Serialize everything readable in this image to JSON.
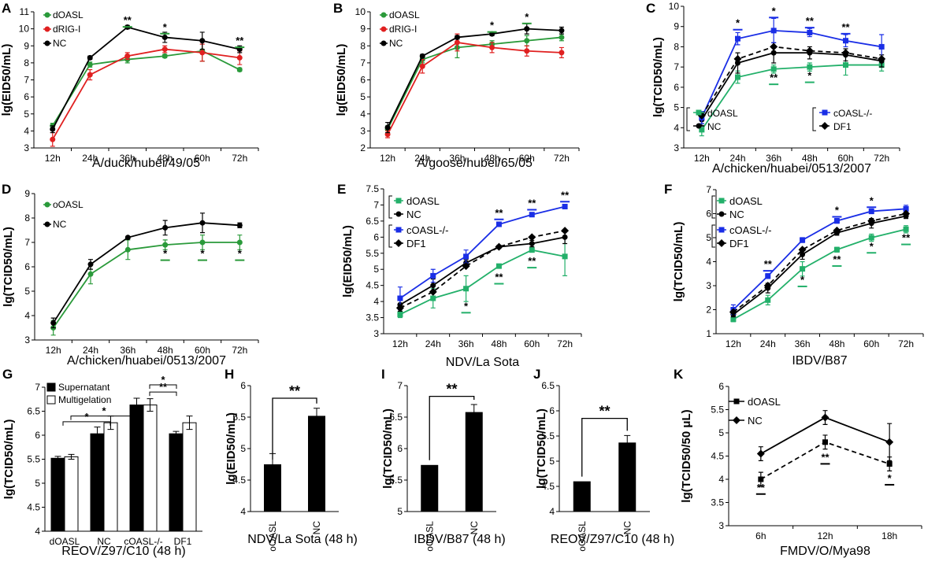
{
  "colors": {
    "green": "#2a9a3a",
    "red": "#e02020",
    "black": "#000000",
    "blue": "#1a2ee6",
    "teal": "#23b06a"
  },
  "chart_data": [
    {
      "id": "A",
      "type": "line",
      "label": "A",
      "xlabel": "A/duck/hubei/49/05",
      "ylabel": "lg(EID50/mL)",
      "ylim": [
        3,
        11
      ],
      "yticks": [
        "3",
        "4",
        "5",
        "6",
        "7",
        "8",
        "9",
        "10",
        "11"
      ],
      "categories": [
        "12h",
        "24h",
        "36h",
        "48h",
        "60h",
        "72h"
      ],
      "series": [
        {
          "name": "dOASL",
          "color": "green",
          "dash": false,
          "values": [
            4.3,
            7.9,
            8.2,
            8.4,
            8.7,
            7.6
          ],
          "errors": [
            0.15,
            0.15,
            0.2,
            0.1,
            0.6,
            0.1
          ]
        },
        {
          "name": "dRIG-I",
          "color": "red",
          "dash": false,
          "values": [
            3.5,
            7.3,
            8.4,
            8.8,
            8.6,
            8.3
          ],
          "errors": [
            0.4,
            0.3,
            0.2,
            0.2,
            0.5,
            0.4
          ]
        },
        {
          "name": "NC",
          "color": "black",
          "dash": false,
          "values": [
            4.1,
            8.3,
            10.1,
            9.5,
            9.3,
            8.8
          ],
          "errors": [
            0.2,
            0.1,
            0.1,
            0.3,
            0.5,
            0.2
          ]
        }
      ],
      "annotations": [
        {
          "x": 2,
          "y": 10.3,
          "text": "**",
          "color": "green"
        },
        {
          "x": 3,
          "y": 9.9,
          "text": "*",
          "color": "green"
        },
        {
          "x": 5,
          "y": 9.1,
          "text": "**",
          "color": "green"
        }
      ]
    },
    {
      "id": "B",
      "type": "line",
      "label": "B",
      "xlabel": "A/goose/hubei/65/05",
      "ylabel": "lg(EID50/mL)",
      "ylim": [
        2,
        10
      ],
      "yticks": [
        "2",
        "3",
        "4",
        "5",
        "6",
        "7",
        "8",
        "9",
        "10"
      ],
      "categories": [
        "12h",
        "24h",
        "36h",
        "48h",
        "60h",
        "72h"
      ],
      "series": [
        {
          "name": "dOASL",
          "color": "green",
          "dash": false,
          "values": [
            3.1,
            7.2,
            7.9,
            8.1,
            8.3,
            8.5
          ],
          "errors": [
            0.2,
            0.2,
            0.6,
            0.2,
            0.3,
            0.2
          ]
        },
        {
          "name": "dRIG-I",
          "color": "red",
          "dash": false,
          "values": [
            2.8,
            6.8,
            8.2,
            7.9,
            7.7,
            7.6
          ],
          "errors": [
            0.2,
            0.4,
            0.5,
            0.3,
            0.3,
            0.3
          ]
        },
        {
          "name": "NC",
          "color": "black",
          "dash": false,
          "values": [
            3.2,
            7.4,
            8.5,
            8.7,
            9.0,
            8.9
          ],
          "errors": [
            0.3,
            0.1,
            0.1,
            0.1,
            0.3,
            0.2
          ]
        }
      ],
      "annotations": [
        {
          "x": 3,
          "y": 9.0,
          "text": "*",
          "color": "green"
        },
        {
          "x": 4,
          "y": 9.5,
          "text": "*",
          "color": "green"
        }
      ]
    },
    {
      "id": "C",
      "type": "line",
      "label": "C",
      "xlabel": "A/chicken/huabei/0513/2007",
      "ylabel": "lg(TCID50/mL)",
      "ylim": [
        3,
        10
      ],
      "yticks": [
        "3",
        "4",
        "5",
        "6",
        "7",
        "8",
        "9",
        "10"
      ],
      "categories": [
        "12h",
        "24h",
        "36h",
        "48h",
        "60h",
        "72h"
      ],
      "series": [
        {
          "name": "dOASL",
          "color": "teal",
          "dash": false,
          "values": [
            3.9,
            6.5,
            6.9,
            7.0,
            7.1,
            7.1
          ],
          "errors": [
            0.3,
            0.3,
            0.2,
            0.2,
            0.5,
            0.3
          ]
        },
        {
          "name": "NC",
          "color": "black",
          "dash": false,
          "values": [
            4.4,
            7.2,
            7.7,
            7.7,
            7.6,
            7.3
          ],
          "errors": [
            0.3,
            0.5,
            0.5,
            0.3,
            0.3,
            0.3
          ]
        },
        {
          "name": "cOASL-/-",
          "color": "blue",
          "dash": false,
          "values": [
            4.5,
            8.4,
            8.8,
            8.7,
            8.3,
            8.0
          ],
          "errors": [
            0.3,
            0.3,
            0.6,
            0.2,
            0.3,
            0.6
          ]
        },
        {
          "name": "DF1",
          "color": "black",
          "dash": true,
          "values": [
            4.6,
            7.4,
            8.0,
            7.8,
            7.7,
            7.4
          ],
          "errors": [
            0,
            0,
            0,
            0,
            0,
            0
          ]
        }
      ],
      "annotations": [
        {
          "x": 1,
          "y": 9.0,
          "text": "*",
          "color": "blue"
        },
        {
          "x": 2,
          "y": 9.6,
          "text": "*",
          "color": "blue"
        },
        {
          "x": 3,
          "y": 9.1,
          "text": "**",
          "color": "blue"
        },
        {
          "x": 4,
          "y": 8.8,
          "text": "**",
          "color": "blue"
        },
        {
          "x": 2,
          "y": 6.3,
          "text": "**",
          "color": "teal"
        },
        {
          "x": 3,
          "y": 6.4,
          "text": "*",
          "color": "teal"
        }
      ]
    },
    {
      "id": "D",
      "type": "line",
      "label": "D",
      "xlabel": "A/chicken/huabei/0513/2007",
      "ylabel": "lg(TCID50/mL)",
      "ylim": [
        3,
        9
      ],
      "yticks": [
        "3",
        "4",
        "5",
        "6",
        "7",
        "8",
        "9"
      ],
      "categories": [
        "12h",
        "24h",
        "36h",
        "48h",
        "60h",
        "72h"
      ],
      "series": [
        {
          "name": "oOASL",
          "color": "green",
          "dash": false,
          "values": [
            3.5,
            5.7,
            6.7,
            6.9,
            7.0,
            7.0
          ],
          "errors": [
            0.3,
            0.4,
            0.4,
            0.2,
            0.3,
            0.3
          ]
        },
        {
          "name": "NC",
          "color": "black",
          "dash": false,
          "values": [
            3.7,
            6.1,
            7.2,
            7.6,
            7.8,
            7.7
          ],
          "errors": [
            0.2,
            0.2,
            0.05,
            0.3,
            0.4,
            0.1
          ]
        }
      ],
      "annotations": [
        {
          "x": 3,
          "y": 6.4,
          "text": "*",
          "color": "green"
        },
        {
          "x": 4,
          "y": 6.4,
          "text": "*",
          "color": "green"
        },
        {
          "x": 5,
          "y": 6.4,
          "text": "*",
          "color": "green"
        }
      ]
    },
    {
      "id": "E",
      "type": "line",
      "label": "E",
      "xlabel": "NDV/La Sota",
      "ylabel": "lg(EID50/mL)",
      "ylim": [
        3,
        7.5
      ],
      "yticks": [
        "3",
        "3.5",
        "4",
        "4.5",
        "5",
        "5.5",
        "6",
        "6.5",
        "7",
        "7.5"
      ],
      "categories": [
        "12h",
        "24h",
        "36h",
        "48h",
        "60h",
        "72h"
      ],
      "series": [
        {
          "name": "dOASL",
          "color": "teal",
          "dash": false,
          "values": [
            3.6,
            4.1,
            4.4,
            5.1,
            5.6,
            5.4
          ],
          "errors": [
            0.1,
            0.3,
            0.4,
            0.05,
            0.05,
            0.6
          ]
        },
        {
          "name": "NC",
          "color": "black",
          "dash": false,
          "values": [
            3.9,
            4.5,
            5.2,
            5.7,
            5.8,
            6.0
          ],
          "errors": [
            0.2,
            0.2,
            0.1,
            0.05,
            0.1,
            0.2
          ]
        },
        {
          "name": "cOASL-/-",
          "color": "blue",
          "dash": false,
          "values": [
            4.1,
            4.8,
            5.4,
            6.4,
            6.7,
            6.95
          ],
          "errors": [
            0.35,
            0.2,
            0.2,
            0.05,
            0.05,
            0.05
          ]
        },
        {
          "name": "DF1",
          "color": "black",
          "dash": true,
          "values": [
            3.8,
            4.3,
            5.1,
            5.7,
            6.0,
            6.2
          ],
          "errors": [
            0,
            0,
            0,
            0,
            0,
            0
          ]
        }
      ],
      "annotations": [
        {
          "x": 3,
          "y": 6.65,
          "text": "**",
          "color": "blue"
        },
        {
          "x": 4,
          "y": 6.95,
          "text": "**",
          "color": "blue"
        },
        {
          "x": 5,
          "y": 7.2,
          "text": "**",
          "color": "blue"
        },
        {
          "x": 2,
          "y": 3.75,
          "text": "*",
          "color": "teal"
        },
        {
          "x": 3,
          "y": 4.65,
          "text": "**",
          "color": "teal"
        },
        {
          "x": 4,
          "y": 5.15,
          "text": "**",
          "color": "teal"
        }
      ]
    },
    {
      "id": "F",
      "type": "line",
      "label": "F",
      "xlabel": "IBDV/B87",
      "ylabel": "lg(TCID50/mL)",
      "ylim": [
        1,
        7
      ],
      "yticks": [
        "1",
        "2",
        "3",
        "4",
        "5",
        "6",
        "7"
      ],
      "categories": [
        "12h",
        "24h",
        "36h",
        "48h",
        "60h",
        "72h"
      ],
      "series": [
        {
          "name": "dOASL",
          "color": "teal",
          "dash": false,
          "values": [
            1.6,
            2.4,
            3.7,
            4.5,
            5.0,
            5.35
          ],
          "errors": [
            0.1,
            0.2,
            0.3,
            0.1,
            0.15,
            0.15
          ]
        },
        {
          "name": "NC",
          "color": "black",
          "dash": false,
          "values": [
            1.8,
            2.9,
            4.3,
            5.2,
            5.6,
            5.9
          ],
          "errors": [
            0.1,
            0.2,
            0.2,
            0.1,
            0.2,
            0.1
          ]
        },
        {
          "name": "cOASL-/-",
          "color": "blue",
          "dash": false,
          "values": [
            2.0,
            3.4,
            4.9,
            5.7,
            6.1,
            6.2
          ],
          "errors": [
            0.2,
            0.1,
            0.1,
            0.1,
            0.1,
            0.15
          ]
        },
        {
          "name": "DF1",
          "color": "black",
          "dash": true,
          "values": [
            1.9,
            3.0,
            4.5,
            5.3,
            5.7,
            6.0
          ],
          "errors": [
            0,
            0,
            0,
            0,
            0,
            0
          ]
        }
      ],
      "annotations": [
        {
          "x": 1,
          "y": 3.75,
          "text": "**",
          "color": "blue"
        },
        {
          "x": 3,
          "y": 6.0,
          "text": "*",
          "color": "blue"
        },
        {
          "x": 4,
          "y": 6.4,
          "text": "*",
          "color": "blue"
        },
        {
          "x": 2,
          "y": 3.1,
          "text": "*",
          "color": "teal"
        },
        {
          "x": 3,
          "y": 3.95,
          "text": "**",
          "color": "teal"
        },
        {
          "x": 4,
          "y": 4.5,
          "text": "*",
          "color": "teal"
        },
        {
          "x": 5,
          "y": 4.85,
          "text": "**",
          "color": "teal"
        }
      ]
    },
    {
      "id": "G",
      "type": "bar",
      "label": "G",
      "xlabel": "REOV/Z97/C10 (48 h)",
      "ylabel": "lg(TCID50/mL)",
      "ylim": [
        4,
        7
      ],
      "yticks": [
        "4",
        "4.5",
        "5",
        "5.5",
        "6",
        "6.5",
        "7"
      ],
      "categories": [
        "dOASL",
        "NC",
        "cOASL-/-",
        "DF1"
      ],
      "series": [
        {
          "name": "Supernatant",
          "fill": "#000000",
          "values": [
            5.52,
            6.03,
            6.63,
            6.03
          ],
          "errors": [
            0.04,
            0.14,
            0.14,
            0.05
          ]
        },
        {
          "name": "Multigelation",
          "fill": "#ffffff",
          "values": [
            5.55,
            6.26,
            6.63,
            6.26
          ],
          "errors": [
            0.05,
            0.14,
            0.13,
            0.14
          ]
        }
      ],
      "brackets": [
        {
          "from": 0,
          "to": 1,
          "y": 6.28,
          "text": "*"
        },
        {
          "from": 0,
          "to": 2,
          "y": 6.4,
          "text": "*"
        },
        {
          "from": 2,
          "to": 3,
          "y": 6.9,
          "text": "**"
        },
        {
          "from": 2,
          "to": 3,
          "y": 7.05,
          "text": "*"
        }
      ]
    },
    {
      "id": "H",
      "type": "bar",
      "label": "H",
      "xlabel": "NDV/La Sota (48 h)",
      "ylabel": "lg(EID50/mL)",
      "ylim": [
        4,
        6
      ],
      "yticks": [
        "4",
        "4.5",
        "5",
        "5.5",
        "6"
      ],
      "categories": [
        "oOASL",
        "NC"
      ],
      "values": [
        4.75,
        5.52
      ],
      "errors": [
        0.17,
        0.12
      ],
      "bracket": {
        "y": 5.8,
        "text": "**"
      }
    },
    {
      "id": "I",
      "type": "bar",
      "label": "I",
      "xlabel": "IBDV/B87 (48 h)",
      "ylabel": "lg(TCID50/mL)",
      "ylim": [
        5,
        7
      ],
      "yticks": [
        "5",
        "5.5",
        "6",
        "6.5",
        "7"
      ],
      "categories": [
        "oOASL",
        "NC"
      ],
      "values": [
        5.74,
        6.58
      ],
      "errors": [
        0,
        0.12
      ],
      "bracket": {
        "y": 6.83,
        "text": "**"
      }
    },
    {
      "id": "J",
      "type": "bar",
      "label": "J",
      "xlabel": "REOV/Z97/C10 (48 h)",
      "ylabel": "lg(TCID50/mL)",
      "ylim": [
        4,
        6.5
      ],
      "yticks": [
        "4",
        "4.5",
        "5",
        "5.5",
        "6",
        "6.5"
      ],
      "categories": [
        "oOASL",
        "NC"
      ],
      "values": [
        4.6,
        5.37
      ],
      "errors": [
        0,
        0.14
      ],
      "bracket": {
        "y": 5.85,
        "text": "**"
      }
    },
    {
      "id": "K",
      "type": "line",
      "label": "K",
      "xlabel": "FMDV/O/Mya98",
      "ylabel": "lg(TCID50/50 μL)",
      "ylim": [
        3,
        6
      ],
      "yticks": [
        "3",
        "3.5",
        "4",
        "4.5",
        "5",
        "5.5",
        "6"
      ],
      "categories": [
        "6h",
        "12h",
        "18h"
      ],
      "series": [
        {
          "name": "dOASL",
          "color": "black",
          "dash": true,
          "marker": "square",
          "values": [
            4.0,
            4.8,
            4.33
          ],
          "errors": [
            0.15,
            0.15,
            0.15
          ]
        },
        {
          "name": "NC",
          "color": "black",
          "dash": false,
          "marker": "diamond",
          "values": [
            4.55,
            5.33,
            4.8
          ],
          "errors": [
            0.15,
            0.15,
            0.4
          ]
        }
      ],
      "annotations": [
        {
          "x": 0,
          "y": 3.75,
          "text": "**",
          "color": "black"
        },
        {
          "x": 1,
          "y": 4.4,
          "text": "**",
          "color": "black"
        },
        {
          "x": 2,
          "y": 3.95,
          "text": "*",
          "color": "black"
        }
      ]
    }
  ]
}
